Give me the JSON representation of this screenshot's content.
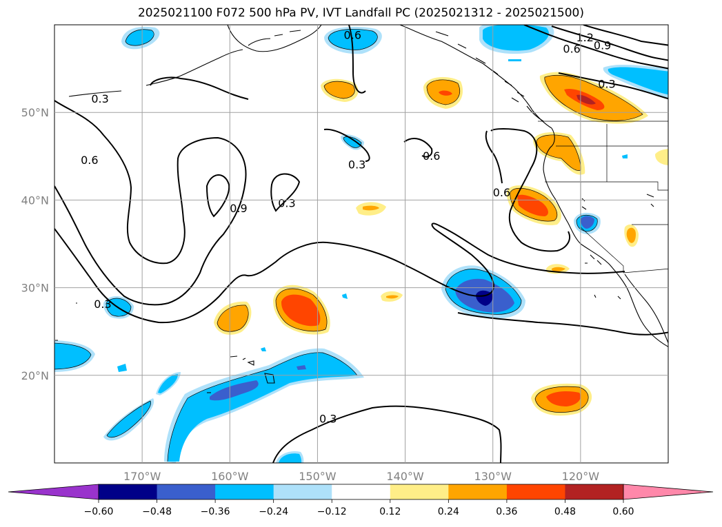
{
  "title": "2025021100 F072 500 hPa PV, IVT Landfall PC (2025021312 - 2025021500)",
  "map": {
    "extent": {
      "lon": [
        -180,
        -110
      ],
      "lat": [
        10,
        60
      ]
    },
    "grid": true,
    "lat_ticks": [
      {
        "lat": 50,
        "label": "50°N"
      },
      {
        "lat": 40,
        "label": "40°N"
      },
      {
        "lat": 30,
        "label": "30°N"
      },
      {
        "lat": 20,
        "label": "20°N"
      }
    ],
    "lon_ticks": [
      {
        "lon": -170,
        "label": "170°W"
      },
      {
        "lon": -160,
        "label": "160°W"
      },
      {
        "lon": -150,
        "label": "150°W"
      },
      {
        "lon": -140,
        "label": "140°W"
      },
      {
        "lon": -130,
        "label": "130°W"
      },
      {
        "lon": -120,
        "label": "120°W"
      }
    ],
    "contour_labels": [
      {
        "text": "0.3",
        "lon": -174.8,
        "lat": 51.5
      },
      {
        "text": "0.6",
        "lon": -176.0,
        "lat": 44.5
      },
      {
        "text": "0.9",
        "lon": -159.0,
        "lat": 39.0
      },
      {
        "text": "0.3",
        "lon": -153.5,
        "lat": 39.6
      },
      {
        "text": "0.3",
        "lon": -174.5,
        "lat": 28.1
      },
      {
        "text": "0.3",
        "lon": -145.5,
        "lat": 44.0
      },
      {
        "text": "0.6",
        "lon": -137.0,
        "lat": 45.0
      },
      {
        "text": "0.6",
        "lon": -129.0,
        "lat": 40.8
      },
      {
        "text": "0.6",
        "lon": -146.0,
        "lat": 58.8
      },
      {
        "text": "1.2",
        "lon": -119.5,
        "lat": 58.5
      },
      {
        "text": "0.9",
        "lon": -117.5,
        "lat": 57.6
      },
      {
        "text": "0.6",
        "lon": -121.0,
        "lat": 57.2
      },
      {
        "text": "0.3",
        "lon": -117.0,
        "lat": 53.2
      },
      {
        "text": "0.3",
        "lon": -148.8,
        "lat": 15.0
      }
    ],
    "pc_positive_features": [
      {
        "lon": -148.5,
        "lat": 53.5,
        "level": 0.24
      },
      {
        "lon": -134.5,
        "lat": 53.0,
        "level": 0.36
      },
      {
        "lon": -122.0,
        "lat": 51.5,
        "level": 0.48
      },
      {
        "lon": -126.5,
        "lat": 46.0,
        "level": 0.24
      },
      {
        "lon": -124.5,
        "lat": 39.5,
        "level": 0.36
      },
      {
        "lon": -144.5,
        "lat": 39.0,
        "level": 0.36
      },
      {
        "lon": -150.0,
        "lat": 27.8,
        "level": 0.36
      },
      {
        "lon": -157.5,
        "lat": 26.5,
        "level": 0.24
      },
      {
        "lon": -142.0,
        "lat": 29.0,
        "level": 0.24
      },
      {
        "lon": -122.0,
        "lat": 17.5,
        "level": 0.36
      },
      {
        "lon": -124.5,
        "lat": 32.0,
        "level": 0.24
      },
      {
        "lon": -116.0,
        "lat": 36.5,
        "level": 0.24
      }
    ],
    "pc_negative_features": [
      {
        "lon": -149.0,
        "lat": 58.3,
        "level": -0.24
      },
      {
        "lon": -173.5,
        "lat": 59.0,
        "level": -0.24
      },
      {
        "lon": -127.5,
        "lat": 58.3,
        "level": -0.24
      },
      {
        "lon": -114.0,
        "lat": 54.0,
        "level": -0.24
      },
      {
        "lon": -146.2,
        "lat": 46.5,
        "level": -0.24
      },
      {
        "lon": -129.5,
        "lat": 28.5,
        "level": -0.48
      },
      {
        "lon": -119.0,
        "lat": 37.7,
        "level": -0.36
      },
      {
        "lon": -173.0,
        "lat": 28.0,
        "level": -0.24
      },
      {
        "lon": -177.5,
        "lat": 22.0,
        "level": -0.24
      },
      {
        "lon": -157.0,
        "lat": 19.0,
        "level": -0.36
      }
    ]
  },
  "colorbar": {
    "colors": [
      "#9933cc",
      "#000088",
      "#3a5fcd",
      "#00bfff",
      "#aee1fa",
      "#ffffff",
      "#ffee88",
      "#ffa500",
      "#ff4500",
      "#b22222",
      "#ff88aa"
    ],
    "tick_labels": [
      "−0.60",
      "−0.48",
      "−0.36",
      "−0.24",
      "−0.12",
      "0.12",
      "0.24",
      "0.36",
      "0.48",
      "0.60"
    ]
  }
}
